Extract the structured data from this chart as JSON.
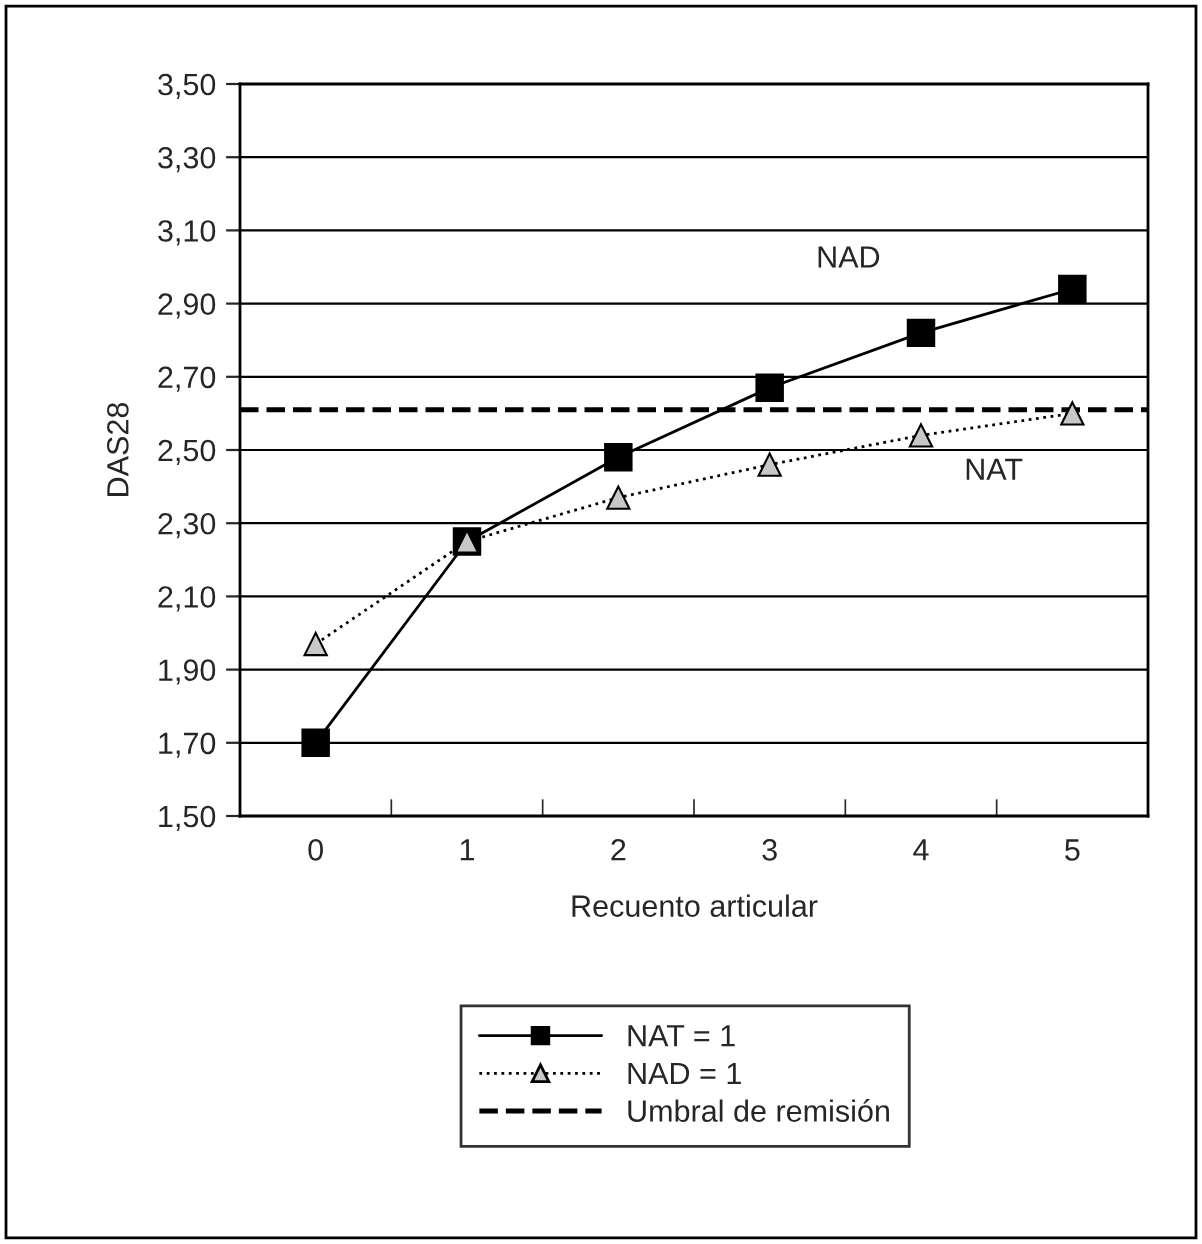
{
  "chart_data": {
    "type": "line",
    "xlabel": "Recuento articular",
    "ylabel": "DAS28",
    "categories": [
      "0",
      "1",
      "2",
      "3",
      "4",
      "5"
    ],
    "series": [
      {
        "name": "NAT = 1",
        "color": "#000000",
        "marker": "square",
        "line_style": "solid",
        "values": [
          1.7,
          2.25,
          2.48,
          2.67,
          2.82,
          2.94
        ]
      },
      {
        "name": "NAD = 1",
        "color": "#000000",
        "marker": "triangle",
        "line_style": "dotted",
        "values": [
          1.97,
          2.25,
          2.37,
          2.46,
          2.54,
          2.6
        ]
      }
    ],
    "ref_lines": [
      {
        "axis": "y",
        "value": 2.61,
        "label": "Umbral de remisión",
        "line_style": "dashed",
        "color": "#000000"
      }
    ],
    "annotations": [
      "NAD",
      "NAT"
    ],
    "ylim": [
      1.5,
      3.5
    ],
    "yticks": [
      {
        "value": 1.5,
        "label": "1,50"
      },
      {
        "value": 1.7,
        "label": "1,70"
      },
      {
        "value": 1.9,
        "label": "1,90"
      },
      {
        "value": 2.1,
        "label": "2,10"
      },
      {
        "value": 2.3,
        "label": "2,30"
      },
      {
        "value": 2.5,
        "label": "2,50"
      },
      {
        "value": 2.7,
        "label": "2,70"
      },
      {
        "value": 2.9,
        "label": "2,90"
      },
      {
        "value": 3.1,
        "label": "3,10"
      },
      {
        "value": 3.3,
        "label": "3,30"
      },
      {
        "value": 3.5,
        "label": "3,50"
      }
    ],
    "grid": "y",
    "legend": "bottom"
  }
}
